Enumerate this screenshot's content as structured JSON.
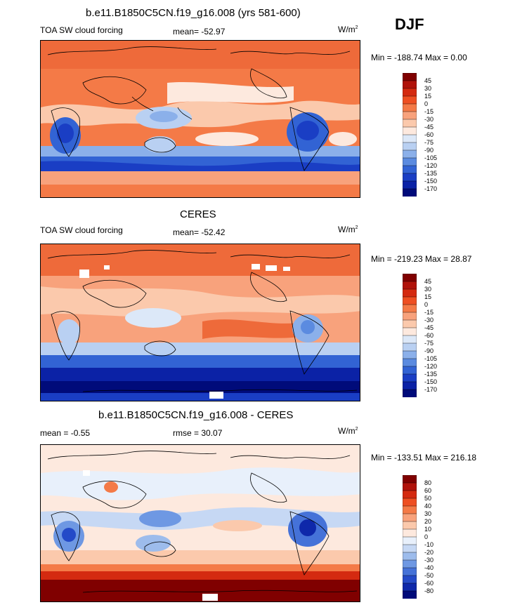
{
  "season": "DJF",
  "panels": [
    {
      "title": "b.e11.B1850C5CN.f19_g16.008 (yrs 581-600)",
      "left_label": "TOA SW cloud forcing",
      "center_label": "mean= -52.97",
      "units_base": "W/m",
      "units_exp": "2",
      "minmax": "Min = -188.74 Max =   0.00",
      "colorbar": {
        "labels": [
          "45",
          "30",
          "15",
          "0",
          "-15",
          "-30",
          "-45",
          "-60",
          "-75",
          "-90",
          "-105",
          "-120",
          "-135",
          "-150",
          "-170"
        ],
        "colors": [
          "#800000",
          "#b0120a",
          "#d42a10",
          "#ee4f22",
          "#f47a47",
          "#f8a27c",
          "#fbc9ac",
          "#fde9de",
          "#dce8f8",
          "#b9d0f2",
          "#8bb0ea",
          "#5b8be0",
          "#3263d4",
          "#1a3ec4",
          "#0b22a6",
          "#000b7a"
        ]
      }
    },
    {
      "title": "CERES",
      "left_label": "TOA SW cloud forcing",
      "center_label": "mean= -52.42",
      "units_base": "W/m",
      "units_exp": "2",
      "minmax": "Min = -219.23 Max =  28.87",
      "colorbar": {
        "labels": [
          "45",
          "30",
          "15",
          "0",
          "-15",
          "-30",
          "-45",
          "-60",
          "-75",
          "-90",
          "-105",
          "-120",
          "-135",
          "-150",
          "-170"
        ],
        "colors": [
          "#800000",
          "#b0120a",
          "#d42a10",
          "#ee4f22",
          "#f47a47",
          "#f8a27c",
          "#fbc9ac",
          "#fde9de",
          "#dce8f8",
          "#b9d0f2",
          "#8bb0ea",
          "#5b8be0",
          "#3263d4",
          "#1a3ec4",
          "#0b22a6",
          "#000b7a"
        ]
      }
    },
    {
      "title": "b.e11.B1850C5CN.f19_g16.008 - CERES",
      "left_label": "mean =  -0.55",
      "center_label": "rmse =  30.07",
      "units_base": "W/m",
      "units_exp": "2",
      "minmax": "Min = -133.51 Max = 216.18",
      "colorbar": {
        "labels": [
          "80",
          "60",
          "50",
          "40",
          "30",
          "20",
          "10",
          "0",
          "-10",
          "-20",
          "-30",
          "-40",
          "-50",
          "-60",
          "-80"
        ],
        "colors": [
          "#800000",
          "#b0120a",
          "#d42a10",
          "#ee4f22",
          "#f47a47",
          "#f8a27c",
          "#fbc9ac",
          "#fde9de",
          "#e8f0fb",
          "#c6d8f4",
          "#9dbcec",
          "#6e98e3",
          "#4572d8",
          "#244ac8",
          "#0e28aa",
          "#000b7a"
        ]
      }
    }
  ]
}
